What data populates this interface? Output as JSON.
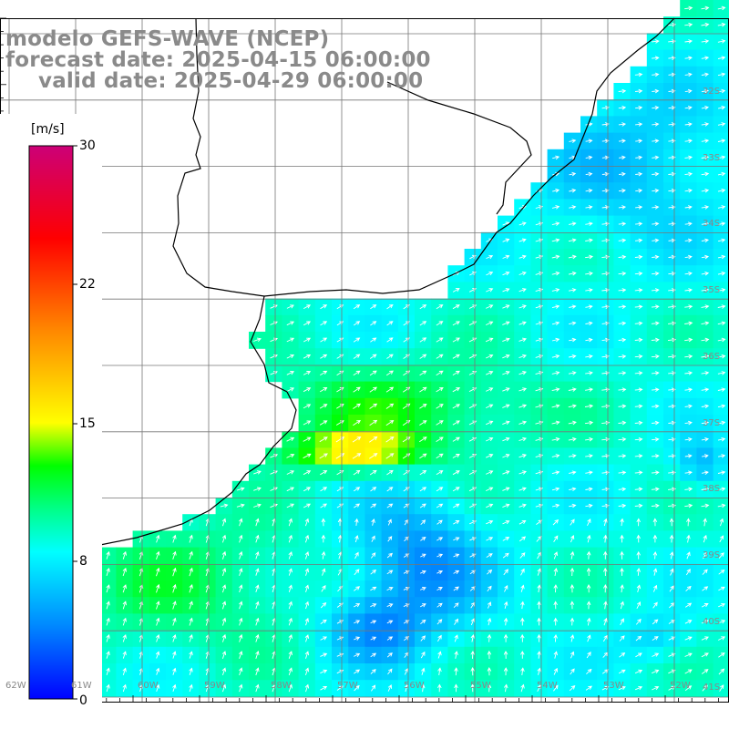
{
  "title": {
    "model": "modelo GEFS-WAVE (NCEP)",
    "forecast": "forecast date: 2025-04-15 06:00:00",
    "valid": "valid date: 2025-04-29 06:00:00"
  },
  "colorbar": {
    "unit": "[m/s]",
    "ticks": [
      "30",
      "22",
      "15",
      "8",
      "0"
    ],
    "stops": [
      "#0000ff",
      "#0088ff",
      "#00ffff",
      "#00ff88",
      "#00ff00",
      "#ffff00",
      "#ff8800",
      "#ff0000",
      "#cc0077"
    ]
  },
  "map": {
    "lat_labels": [
      "32S",
      "33S",
      "34S",
      "35S",
      "36S",
      "37S",
      "38S",
      "39S",
      "40S",
      "41S"
    ],
    "lon_labels": [
      "62W",
      "61W",
      "60W",
      "59W",
      "58W",
      "57W",
      "56W",
      "55W",
      "54W",
      "53W",
      "52W"
    ],
    "land_color": "#ffffff",
    "grid_color": "#777777",
    "arrow_color": "#ffffff"
  }
}
